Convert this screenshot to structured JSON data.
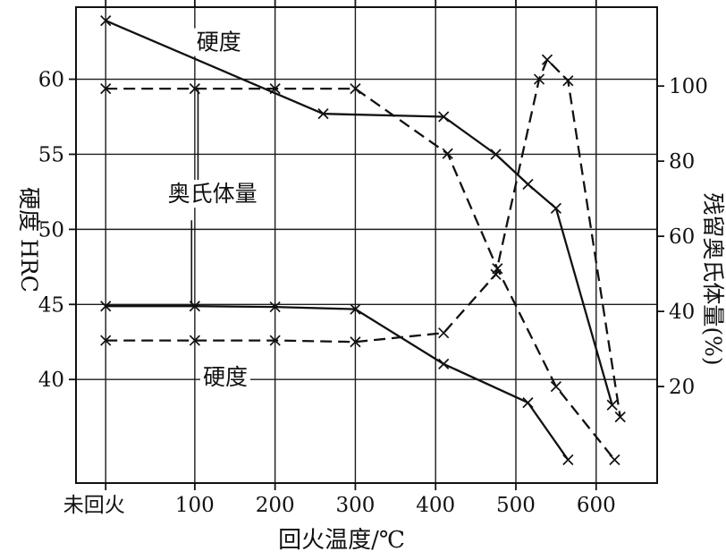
{
  "figure": {
    "xlabel": "回火温度/℃",
    "ylabel_left": "硬度 HRC",
    "ylabel_right": "残留奥氏体量(%)"
  },
  "chart_data": {
    "type": "line",
    "title": "",
    "xlabel": "回火温度/℃",
    "ylabel_left": "硬度 HRC",
    "ylabel_right": "残留奥氏体量(%)",
    "grid": true,
    "ink_color": "#111111",
    "grid_color": "#1c1c1c",
    "x_domain": [
      -48,
      676
    ],
    "yleft_domain": [
      33.1,
      64.8
    ],
    "yright_domain": [
      -5.7,
      121
    ],
    "x_ticks": [
      {
        "t": -11,
        "label": "未回火",
        "dx": -13
      },
      {
        "t": 100,
        "label": "100"
      },
      {
        "t": 200,
        "label": "200"
      },
      {
        "t": 300,
        "label": "300"
      },
      {
        "t": 400,
        "label": "400"
      },
      {
        "t": 500,
        "label": "500"
      },
      {
        "t": 600,
        "label": "600"
      }
    ],
    "yleft_ticks": [
      {
        "v": 40,
        "label": "40"
      },
      {
        "v": 45,
        "label": "45"
      },
      {
        "v": 50,
        "label": "50"
      },
      {
        "v": 55,
        "label": "55"
      },
      {
        "v": 60,
        "label": "60"
      }
    ],
    "yright_ticks": [
      {
        "v": 20,
        "label": "20"
      },
      {
        "v": 40,
        "label": "40"
      },
      {
        "v": 60,
        "label": "60"
      },
      {
        "v": 80,
        "label": "80"
      },
      {
        "v": 100,
        "label": "100"
      }
    ],
    "series": [
      {
        "name": "硬度 (实线, 上)",
        "style": "solid",
        "axis": "left",
        "marker": "x",
        "points": [
          [
            -11,
            63.9
          ],
          [
            260,
            57.7
          ],
          [
            410,
            57.5
          ],
          [
            475,
            55.0
          ],
          [
            515,
            53.0
          ],
          [
            550,
            51.4
          ],
          [
            620,
            38.3
          ]
        ]
      },
      {
        "name": "硬度 (虚线, 下)",
        "style": "dashed",
        "axis": "left",
        "marker": "x",
        "points": [
          [
            -11,
            42.6
          ],
          [
            100,
            42.6
          ],
          [
            200,
            42.6
          ],
          [
            300,
            42.5
          ],
          [
            410,
            43.1
          ],
          [
            475,
            47.0
          ],
          [
            529,
            60.0
          ],
          [
            539,
            61.3
          ],
          [
            565,
            59.9
          ],
          [
            630,
            37.5
          ]
        ]
      },
      {
        "name": "奥氏体量 (虚线, 上)",
        "style": "dashed",
        "axis": "right",
        "marker": "x",
        "points": [
          [
            -11,
            99.3
          ],
          [
            100,
            99.3
          ],
          [
            200,
            99.3
          ],
          [
            300,
            99.3
          ],
          [
            415,
            82.0
          ],
          [
            477,
            51.4
          ],
          [
            550,
            20.0
          ],
          [
            623,
            0.5
          ]
        ]
      },
      {
        "name": "奥氏体量 (实线, 下)",
        "style": "solid",
        "axis": "right",
        "marker": "x",
        "points": [
          [
            -11,
            41.4
          ],
          [
            100,
            41.4
          ],
          [
            200,
            41.2
          ],
          [
            300,
            40.6
          ],
          [
            410,
            26.0
          ],
          [
            515,
            15.7
          ],
          [
            565,
            0.5
          ]
        ]
      }
    ],
    "annotations": [
      {
        "text": "硬度",
        "t": 130,
        "v": 62.5,
        "axis": "left",
        "leaders": []
      },
      {
        "text": "奥氏体量",
        "t": 122,
        "v": 52.4,
        "axis": "left",
        "leaders": [
          {
            "t1": 104,
            "v1": 53.2,
            "t2": 104,
            "v2": 59.3
          },
          {
            "t1": 96,
            "v1": 50.6,
            "t2": 96,
            "v2": 45.0
          }
        ]
      },
      {
        "text": "硬度",
        "t": 138,
        "v": 40.2,
        "axis": "left",
        "leaders": []
      }
    ]
  }
}
